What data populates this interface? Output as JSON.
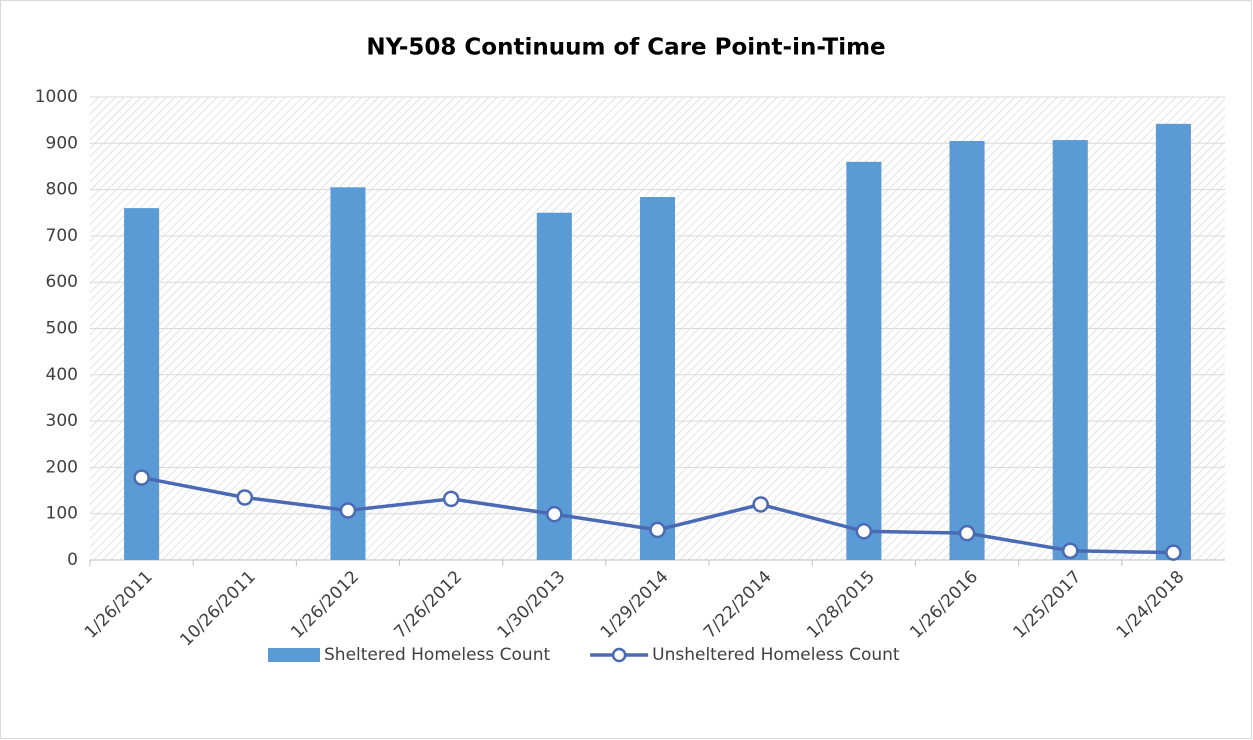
{
  "chart_data": {
    "type": "bar_line",
    "title": "NY-508 Continuum of Care Point-in-Time",
    "categories": [
      "1/26/2011",
      "10/26/2011",
      "1/26/2012",
      "7/26/2012",
      "1/30/2013",
      "1/29/2014",
      "7/22/2014",
      "1/28/2015",
      "1/26/2016",
      "1/25/2017",
      "1/24/2018"
    ],
    "series": [
      {
        "name": "Sheltered Homeless Count",
        "type": "bar",
        "color": "#5b9bd5",
        "values": [
          760,
          null,
          805,
          null,
          750,
          784,
          null,
          860,
          905,
          907,
          942
        ]
      },
      {
        "name": "Unsheltered Homeless Count",
        "type": "line",
        "color": "#4a6ab5",
        "values": [
          178,
          135,
          107,
          132,
          99,
          65,
          120,
          62,
          58,
          20,
          16
        ]
      }
    ],
    "ylim": [
      0,
      1000
    ],
    "yticks": [
      0,
      100,
      200,
      300,
      400,
      500,
      600,
      700,
      800,
      900,
      1000
    ],
    "grid": true,
    "legend": "bottom"
  }
}
